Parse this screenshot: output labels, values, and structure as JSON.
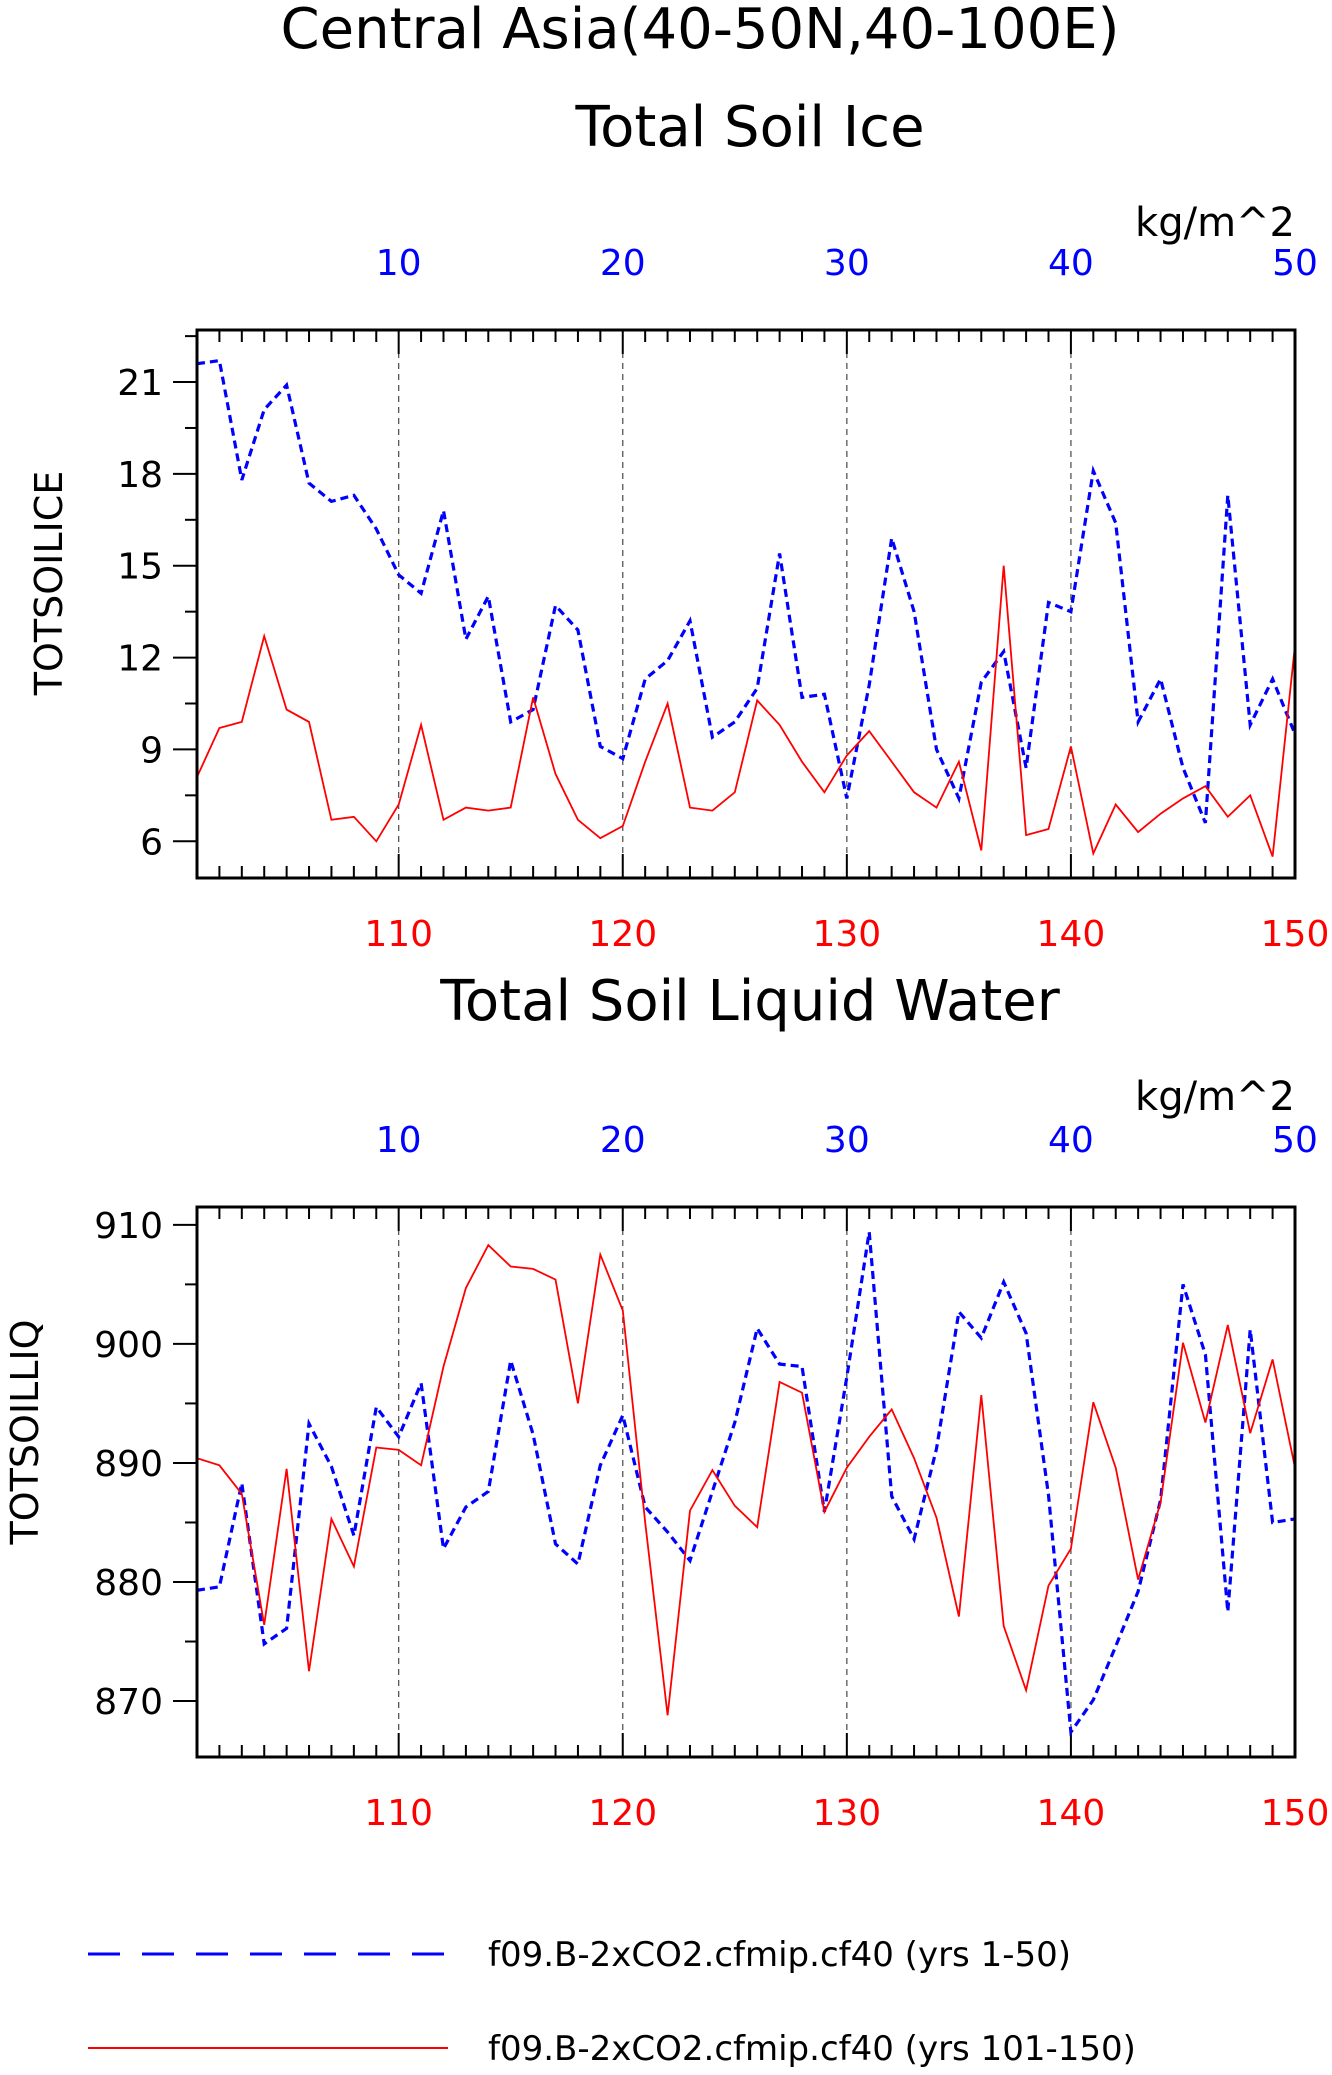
{
  "title_line1": "Central Asia(40-50N,40-100E)",
  "colors": {
    "blue": "#0000ff",
    "red": "#ff0000",
    "grid": "#555555"
  },
  "legend": [
    {
      "label": "f09.B-2xCO2.cfmip.cf40 (yrs 1-50)",
      "color": "#0000ff",
      "style": "dashed"
    },
    {
      "label": "f09.B-2xCO2.cfmip.cf40 (yrs 101-150)",
      "color": "#ff0000",
      "style": "solid"
    }
  ],
  "chart_data": [
    {
      "type": "line",
      "title": "Total Soil Ice",
      "ylabel": "TOTSOILICE",
      "units": "kg/m^2",
      "ylim": [
        4.8,
        22.7
      ],
      "yticks": [
        6,
        9,
        12,
        15,
        18,
        21
      ],
      "top_axis": {
        "range": [
          1,
          50
        ],
        "ticks": [
          10,
          20,
          30,
          40,
          50
        ],
        "color": "#0000ff"
      },
      "bottom_axis": {
        "range": [
          101,
          150
        ],
        "ticks": [
          110,
          120,
          130,
          140,
          150
        ],
        "color": "#ff0000"
      },
      "grid_x": [
        10,
        20,
        30,
        40
      ],
      "series": [
        {
          "label": "f09.B-2xCO2.cfmip.cf40 (yrs 1-50)",
          "axis": "top",
          "color": "#0000ff",
          "style": "dashed",
          "values": [
            21.6,
            21.7,
            17.8,
            20.1,
            20.9,
            17.7,
            17.1,
            17.3,
            16.2,
            14.7,
            14.1,
            16.8,
            12.6,
            14.0,
            9.9,
            10.3,
            13.7,
            12.9,
            9.1,
            8.7,
            11.3,
            11.9,
            13.2,
            9.4,
            9.9,
            11.0,
            15.4,
            10.7,
            10.8,
            7.4,
            11.1,
            15.9,
            13.5,
            9.0,
            7.4,
            11.2,
            12.2,
            8.4,
            13.8,
            13.5,
            18.1,
            16.4,
            9.9,
            11.3,
            8.4,
            6.6,
            17.3,
            9.8,
            11.3,
            9.5
          ]
        },
        {
          "label": "f09.B-2xCO2.cfmip.cf40 (yrs 101-150)",
          "axis": "bottom",
          "color": "#ff0000",
          "style": "solid",
          "values": [
            8.1,
            9.7,
            9.9,
            12.7,
            10.3,
            9.9,
            6.7,
            6.8,
            6.0,
            7.2,
            9.8,
            6.7,
            7.1,
            7.0,
            7.1,
            10.7,
            8.2,
            6.7,
            6.1,
            6.5,
            8.6,
            10.5,
            7.1,
            7.0,
            7.6,
            10.6,
            9.8,
            8.6,
            7.6,
            8.8,
            9.6,
            8.6,
            7.6,
            7.1,
            8.6,
            5.7,
            15.0,
            6.2,
            6.4,
            9.1,
            5.6,
            7.2,
            6.3,
            6.9,
            7.4,
            7.8,
            6.8,
            7.5,
            5.5,
            12.4
          ]
        }
      ]
    },
    {
      "type": "line",
      "title": "Total Soil Liquid Water",
      "ylabel": "TOTSOILLIQ",
      "units": "kg/m^2",
      "ylim": [
        865.3,
        911.5
      ],
      "yticks": [
        870,
        880,
        890,
        900,
        910
      ],
      "top_axis": {
        "range": [
          1,
          50
        ],
        "ticks": [
          10,
          20,
          30,
          40,
          50
        ],
        "color": "#0000ff"
      },
      "bottom_axis": {
        "range": [
          101,
          150
        ],
        "ticks": [
          110,
          120,
          130,
          140,
          150
        ],
        "color": "#ff0000"
      },
      "grid_x": [
        10,
        20,
        30,
        40
      ],
      "series": [
        {
          "label": "f09.B-2xCO2.cfmip.cf40 (yrs 1-50)",
          "axis": "top",
          "color": "#0000ff",
          "style": "dashed",
          "values": [
            879.3,
            879.6,
            888.3,
            874.8,
            876.1,
            893.3,
            889.7,
            883.9,
            894.7,
            892.2,
            896.7,
            882.8,
            886.3,
            887.6,
            898.6,
            892.4,
            883.2,
            881.5,
            889.8,
            894.0,
            886.3,
            884.2,
            881.8,
            887.6,
            893.4,
            901.3,
            898.3,
            898.1,
            885.9,
            897.2,
            909.4,
            887.2,
            883.6,
            891.2,
            902.7,
            900.5,
            905.2,
            900.9,
            887.3,
            867.4,
            870.1,
            874.6,
            879.2,
            886.9,
            905.0,
            899.1,
            877.5,
            901.2,
            885.0,
            885.3
          ]
        },
        {
          "label": "f09.B-2xCO2.cfmip.cf40 (yrs 101-150)",
          "axis": "bottom",
          "color": "#ff0000",
          "style": "solid",
          "values": [
            890.4,
            889.8,
            887.4,
            876.4,
            889.5,
            872.5,
            885.3,
            881.3,
            891.3,
            891.1,
            889.8,
            898.1,
            904.7,
            908.3,
            906.5,
            906.3,
            905.4,
            895.0,
            907.5,
            902.8,
            885.0,
            868.8,
            886.0,
            889.4,
            886.4,
            884.6,
            896.8,
            895.9,
            885.9,
            889.6,
            892.2,
            894.5,
            890.4,
            885.4,
            877.1,
            895.7,
            876.3,
            870.9,
            879.7,
            882.8,
            895.1,
            889.6,
            880.2,
            886.7,
            900.1,
            893.4,
            901.6,
            892.5,
            898.7,
            889.6
          ]
        }
      ]
    }
  ]
}
